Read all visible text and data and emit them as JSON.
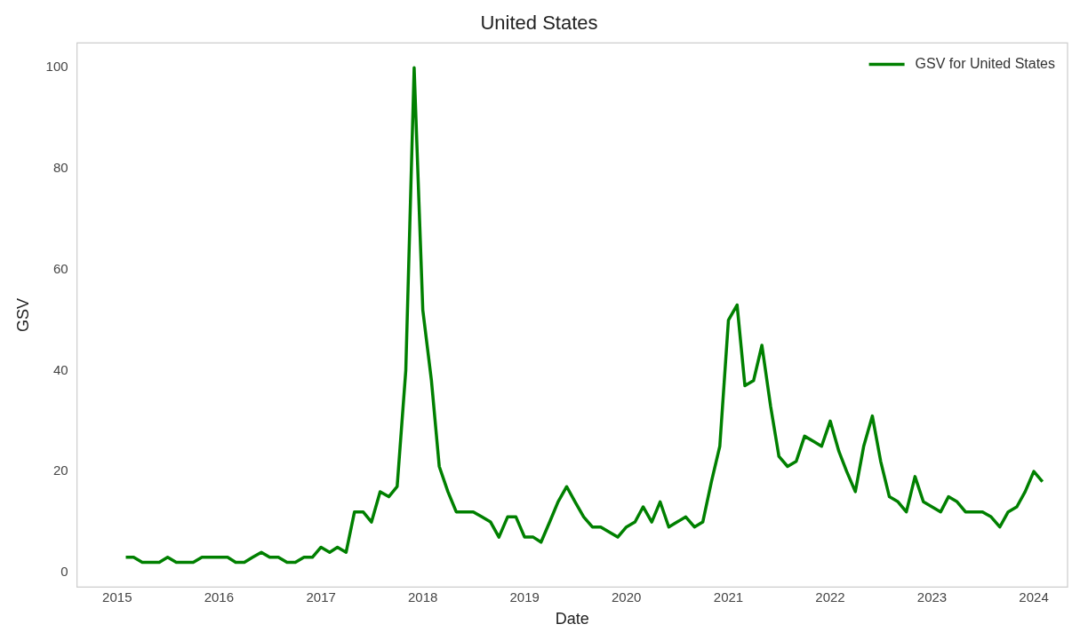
{
  "chart_data": {
    "type": "line",
    "title": "United States",
    "xlabel": "Date",
    "ylabel": "GSV",
    "x": [
      "2015-02",
      "2015-03",
      "2015-04",
      "2015-05",
      "2015-06",
      "2015-07",
      "2015-08",
      "2015-09",
      "2015-10",
      "2015-11",
      "2015-12",
      "2016-01",
      "2016-02",
      "2016-03",
      "2016-04",
      "2016-05",
      "2016-06",
      "2016-07",
      "2016-08",
      "2016-09",
      "2016-10",
      "2016-11",
      "2016-12",
      "2017-01",
      "2017-02",
      "2017-03",
      "2017-04",
      "2017-05",
      "2017-06",
      "2017-07",
      "2017-08",
      "2017-09",
      "2017-10",
      "2017-11",
      "2017-12",
      "2018-01",
      "2018-02",
      "2018-03",
      "2018-04",
      "2018-05",
      "2018-06",
      "2018-07",
      "2018-08",
      "2018-09",
      "2018-10",
      "2018-11",
      "2018-12",
      "2019-01",
      "2019-02",
      "2019-03",
      "2019-04",
      "2019-05",
      "2019-06",
      "2019-07",
      "2019-08",
      "2019-09",
      "2019-10",
      "2019-11",
      "2019-12",
      "2020-01",
      "2020-02",
      "2020-03",
      "2020-04",
      "2020-05",
      "2020-06",
      "2020-07",
      "2020-08",
      "2020-09",
      "2020-10",
      "2020-11",
      "2020-12",
      "2021-01",
      "2021-02",
      "2021-03",
      "2021-04",
      "2021-05",
      "2021-06",
      "2021-07",
      "2021-08",
      "2021-09",
      "2021-10",
      "2021-11",
      "2021-12",
      "2022-01",
      "2022-02",
      "2022-03",
      "2022-04",
      "2022-05",
      "2022-06",
      "2022-07",
      "2022-08",
      "2022-09",
      "2022-10",
      "2022-11",
      "2022-12",
      "2023-01",
      "2023-02",
      "2023-03",
      "2023-04",
      "2023-05",
      "2023-06",
      "2023-07",
      "2023-08",
      "2023-09",
      "2023-10",
      "2023-11",
      "2023-12",
      "2024-01",
      "2024-02"
    ],
    "series": [
      {
        "name": "GSV for United States",
        "color": "#008000",
        "values": [
          3,
          3,
          2,
          2,
          2,
          3,
          2,
          2,
          2,
          3,
          3,
          3,
          3,
          2,
          2,
          3,
          4,
          3,
          3,
          2,
          2,
          3,
          3,
          5,
          4,
          5,
          4,
          12,
          12,
          10,
          16,
          15,
          17,
          40,
          100,
          52,
          38,
          21,
          16,
          12,
          12,
          12,
          11,
          10,
          7,
          11,
          11,
          7,
          7,
          6,
          10,
          14,
          17,
          14,
          11,
          9,
          9,
          8,
          7,
          9,
          10,
          13,
          10,
          14,
          9,
          10,
          11,
          9,
          10,
          18,
          25,
          50,
          53,
          37,
          38,
          45,
          33,
          23,
          21,
          22,
          27,
          26,
          25,
          30,
          24,
          20,
          16,
          25,
          31,
          22,
          15,
          14,
          12,
          19,
          14,
          13,
          12,
          15,
          14,
          12,
          12,
          12,
          11,
          9,
          12,
          13,
          16,
          20,
          18
        ]
      }
    ],
    "xlim": [
      "2014-08-10",
      "2024-05-01"
    ],
    "xticks": [
      "2015",
      "2016",
      "2017",
      "2018",
      "2019",
      "2020",
      "2021",
      "2022",
      "2023",
      "2024"
    ],
    "ylim": [
      -2.9,
      104.9
    ],
    "yticks": [
      0,
      20,
      40,
      60,
      80,
      100
    ],
    "legend": "top right",
    "line_style": "solid",
    "marker": "none"
  }
}
